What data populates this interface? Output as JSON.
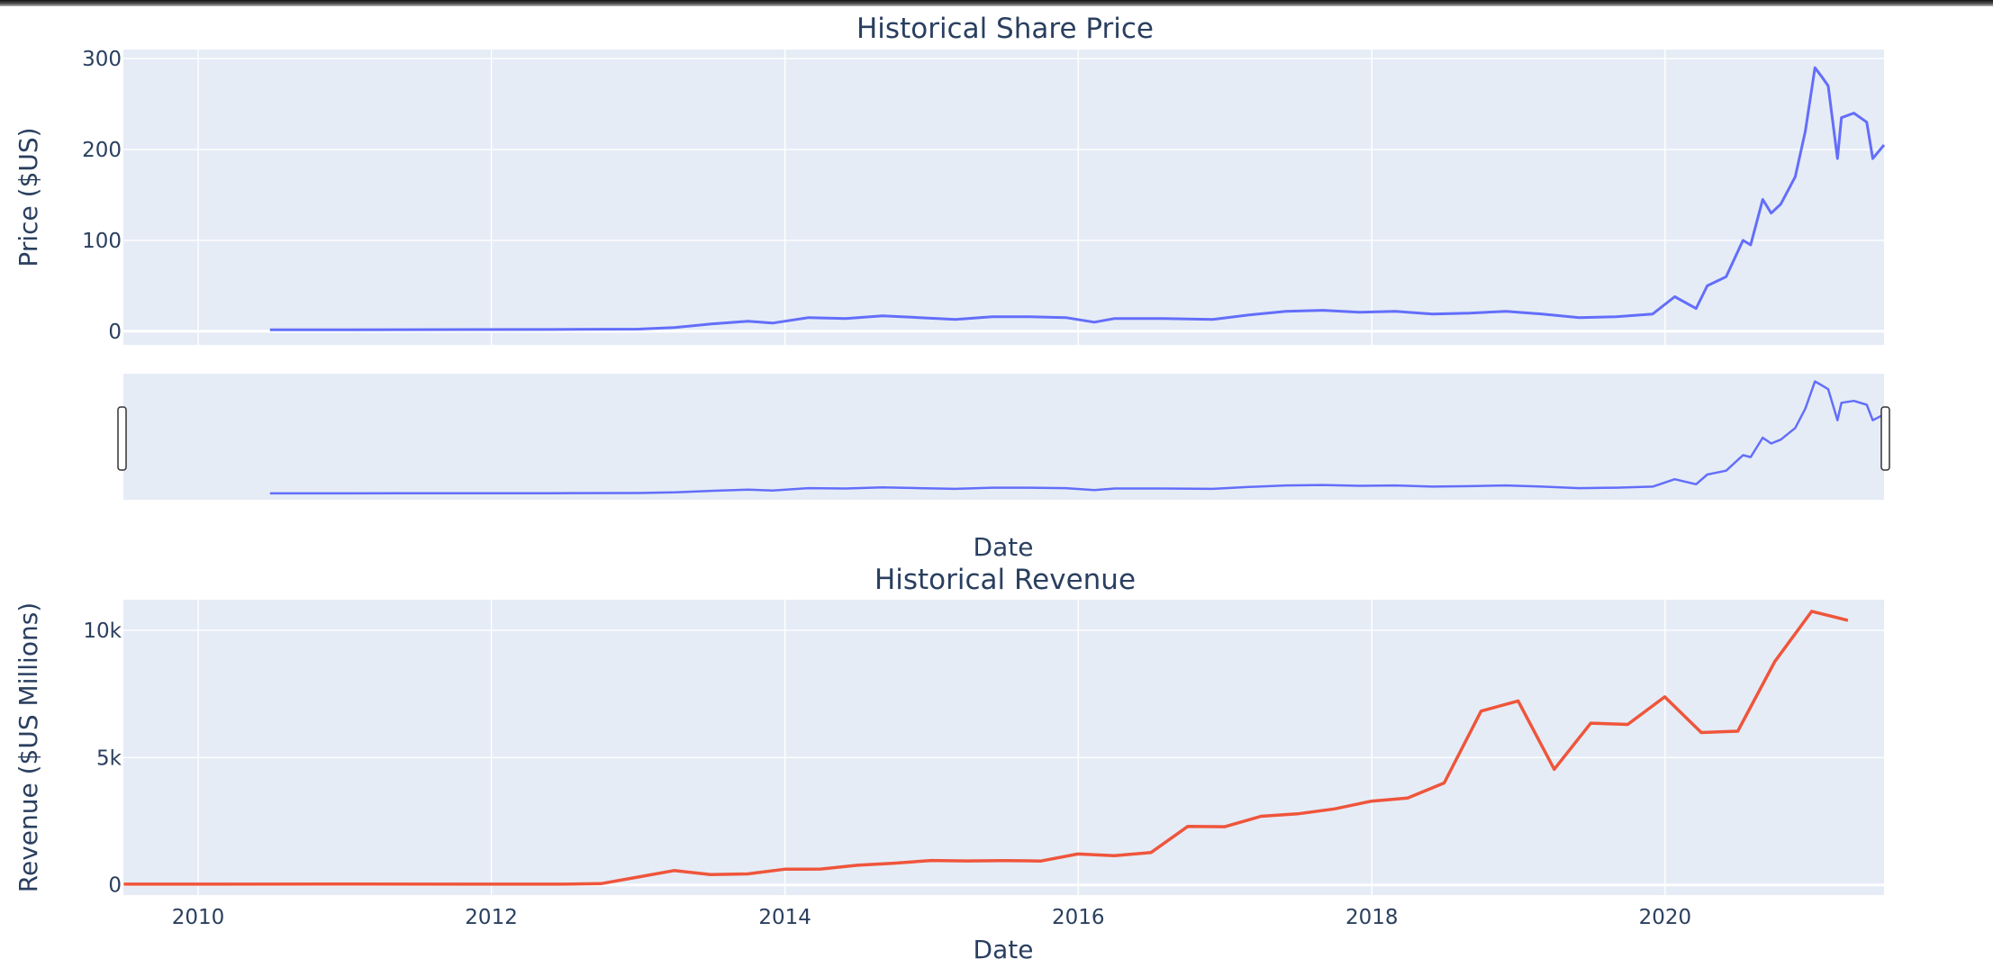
{
  "chart_data": [
    {
      "type": "line",
      "title": "Historical Share Price",
      "xlabel": "Date",
      "ylabel": "Price ($US)",
      "xlim": [
        "2009-06-29",
        "2021-06-29"
      ],
      "ylim": [
        -15,
        310
      ],
      "y_ticks": [
        {
          "value": 0,
          "label": "0"
        },
        {
          "value": 100,
          "label": "100"
        },
        {
          "value": 200,
          "label": "200"
        },
        {
          "value": 300,
          "label": "300"
        }
      ],
      "grid": true,
      "rangeslider": true,
      "series": [
        {
          "color": "#636efa",
          "x": [
            "2010-06-29",
            "2011-06-01",
            "2012-06-01",
            "2013-01-01",
            "2013-04-01",
            "2013-07-01",
            "2013-10-01",
            "2013-12-01",
            "2014-03-01",
            "2014-06-01",
            "2014-09-01",
            "2014-12-01",
            "2015-03-01",
            "2015-06-01",
            "2015-09-01",
            "2015-12-01",
            "2016-02-10",
            "2016-04-01",
            "2016-08-01",
            "2016-12-01",
            "2017-03-01",
            "2017-06-01",
            "2017-09-01",
            "2017-12-01",
            "2018-03-01",
            "2018-06-01",
            "2018-09-01",
            "2018-12-01",
            "2019-03-01",
            "2019-06-01",
            "2019-09-01",
            "2019-12-01",
            "2020-01-25",
            "2020-03-18",
            "2020-04-15",
            "2020-06-01",
            "2020-07-13",
            "2020-08-01",
            "2020-08-31",
            "2020-09-21",
            "2020-10-15",
            "2020-11-20",
            "2020-12-15",
            "2021-01-08",
            "2021-01-25",
            "2021-02-10",
            "2021-03-05",
            "2021-03-15",
            "2021-04-15",
            "2021-05-17",
            "2021-06-01",
            "2021-06-29"
          ],
          "y": [
            1.5,
            1.7,
            1.9,
            2.3,
            4,
            8,
            11,
            9,
            15,
            14,
            17,
            15,
            13,
            16,
            16,
            15,
            10,
            14,
            14,
            13,
            18,
            22,
            23,
            21,
            22,
            19,
            20,
            22,
            19,
            15,
            16,
            19,
            38,
            25,
            50,
            60,
            100,
            95,
            145,
            130,
            140,
            170,
            220,
            290,
            280,
            270,
            190,
            235,
            240,
            230,
            190,
            205
          ]
        }
      ]
    },
    {
      "type": "line",
      "title": "Historical Revenue",
      "xlabel": "Date",
      "ylabel": "Revenue ($US Millions)",
      "xlim": [
        "2009-06-29",
        "2021-06-29"
      ],
      "ylim": [
        -400,
        11200
      ],
      "y_ticks": [
        {
          "value": 0,
          "label": "0"
        },
        {
          "value": 5000,
          "label": "5k"
        },
        {
          "value": 10000,
          "label": "10k"
        }
      ],
      "x_ticks": [
        {
          "value": "2010-01-01",
          "label": "2010"
        },
        {
          "value": "2012-01-01",
          "label": "2012"
        },
        {
          "value": "2014-01-01",
          "label": "2014"
        },
        {
          "value": "2016-01-01",
          "label": "2016"
        },
        {
          "value": "2018-01-01",
          "label": "2018"
        },
        {
          "value": "2020-01-01",
          "label": "2020"
        }
      ],
      "grid": true,
      "series": [
        {
          "color": "#ef553b",
          "x": [
            "2009-06-30",
            "2010-12-31",
            "2012-06-30",
            "2012-09-30",
            "2012-12-31",
            "2013-03-31",
            "2013-06-30",
            "2013-09-30",
            "2013-12-31",
            "2014-03-31",
            "2014-06-30",
            "2014-09-30",
            "2014-12-31",
            "2015-03-31",
            "2015-06-30",
            "2015-09-30",
            "2015-12-31",
            "2016-03-31",
            "2016-06-30",
            "2016-09-30",
            "2016-12-31",
            "2017-03-31",
            "2017-06-30",
            "2017-09-30",
            "2017-12-31",
            "2018-03-31",
            "2018-06-30",
            "2018-09-30",
            "2018-12-31",
            "2019-03-31",
            "2019-06-30",
            "2019-09-30",
            "2019-12-31",
            "2020-03-31",
            "2020-06-30",
            "2020-09-30",
            "2020-12-31",
            "2021-03-31"
          ],
          "y": [
            27,
            31,
            27,
            50,
            306,
            562,
            405,
            431,
            615,
            621,
            769,
            852,
            957,
            940,
            955,
            937,
            1214,
            1147,
            1270,
            2298,
            2285,
            2696,
            2790,
            2985,
            3288,
            3409,
            4002,
            6824,
            7226,
            4541,
            6350,
            6303,
            7384,
            5985,
            6036,
            8771,
            10744,
            10389
          ]
        }
      ]
    }
  ]
}
